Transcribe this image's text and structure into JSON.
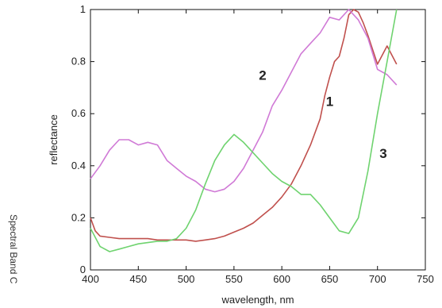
{
  "chart_data": {
    "type": "line",
    "xlabel": "wavelength, nm",
    "ylabel": "reflectance",
    "xlim": [
      400,
      750
    ],
    "ylim": [
      0,
      1
    ],
    "xticks": [
      "400",
      "450",
      "500",
      "550",
      "600",
      "650",
      "700",
      "750"
    ],
    "yticks": [
      "0",
      "0.2",
      "0.4",
      "0.6",
      "0.8",
      "1"
    ],
    "grid": false,
    "legend": "none",
    "series": [
      {
        "name": "1",
        "color": "#c0504d",
        "points": [
          [
            400,
            0.2
          ],
          [
            405,
            0.15
          ],
          [
            410,
            0.13
          ],
          [
            420,
            0.125
          ],
          [
            430,
            0.12
          ],
          [
            440,
            0.12
          ],
          [
            450,
            0.12
          ],
          [
            460,
            0.12
          ],
          [
            470,
            0.115
          ],
          [
            480,
            0.115
          ],
          [
            490,
            0.115
          ],
          [
            500,
            0.115
          ],
          [
            510,
            0.11
          ],
          [
            520,
            0.115
          ],
          [
            530,
            0.12
          ],
          [
            540,
            0.13
          ],
          [
            550,
            0.145
          ],
          [
            560,
            0.16
          ],
          [
            570,
            0.18
          ],
          [
            580,
            0.21
          ],
          [
            590,
            0.24
          ],
          [
            600,
            0.28
          ],
          [
            610,
            0.33
          ],
          [
            620,
            0.4
          ],
          [
            630,
            0.48
          ],
          [
            640,
            0.58
          ],
          [
            645,
            0.67
          ],
          [
            650,
            0.74
          ],
          [
            655,
            0.8
          ],
          [
            660,
            0.82
          ],
          [
            665,
            0.89
          ],
          [
            670,
            0.98
          ],
          [
            675,
            1.0
          ],
          [
            680,
            0.99
          ],
          [
            685,
            0.95
          ],
          [
            690,
            0.9
          ],
          [
            700,
            0.79
          ],
          [
            710,
            0.86
          ],
          [
            720,
            0.79
          ]
        ]
      },
      {
        "name": "2",
        "color": "#d07ad6",
        "points": [
          [
            400,
            0.35
          ],
          [
            410,
            0.4
          ],
          [
            420,
            0.46
          ],
          [
            430,
            0.5
          ],
          [
            440,
            0.5
          ],
          [
            450,
            0.48
          ],
          [
            460,
            0.49
          ],
          [
            470,
            0.48
          ],
          [
            480,
            0.42
          ],
          [
            490,
            0.39
          ],
          [
            500,
            0.36
          ],
          [
            510,
            0.34
          ],
          [
            520,
            0.31
          ],
          [
            530,
            0.3
          ],
          [
            540,
            0.31
          ],
          [
            550,
            0.34
          ],
          [
            560,
            0.39
          ],
          [
            570,
            0.46
          ],
          [
            580,
            0.53
          ],
          [
            590,
            0.63
          ],
          [
            600,
            0.69
          ],
          [
            610,
            0.76
          ],
          [
            620,
            0.83
          ],
          [
            630,
            0.87
          ],
          [
            640,
            0.91
          ],
          [
            650,
            0.97
          ],
          [
            660,
            0.96
          ],
          [
            670,
            1.0
          ],
          [
            680,
            0.96
          ],
          [
            690,
            0.89
          ],
          [
            700,
            0.77
          ],
          [
            710,
            0.75
          ],
          [
            720,
            0.71
          ]
        ]
      },
      {
        "name": "3",
        "color": "#6fd36f",
        "points": [
          [
            400,
            0.16
          ],
          [
            410,
            0.09
          ],
          [
            420,
            0.07
          ],
          [
            430,
            0.08
          ],
          [
            440,
            0.09
          ],
          [
            450,
            0.1
          ],
          [
            460,
            0.105
          ],
          [
            470,
            0.11
          ],
          [
            480,
            0.11
          ],
          [
            490,
            0.12
          ],
          [
            500,
            0.16
          ],
          [
            510,
            0.23
          ],
          [
            520,
            0.33
          ],
          [
            530,
            0.42
          ],
          [
            540,
            0.48
          ],
          [
            550,
            0.52
          ],
          [
            560,
            0.49
          ],
          [
            570,
            0.45
          ],
          [
            580,
            0.41
          ],
          [
            590,
            0.37
          ],
          [
            600,
            0.34
          ],
          [
            610,
            0.32
          ],
          [
            620,
            0.29
          ],
          [
            630,
            0.29
          ],
          [
            640,
            0.25
          ],
          [
            650,
            0.2
          ],
          [
            660,
            0.15
          ],
          [
            670,
            0.14
          ],
          [
            680,
            0.2
          ],
          [
            690,
            0.38
          ],
          [
            700,
            0.6
          ],
          [
            710,
            0.8
          ],
          [
            720,
            1.0
          ]
        ]
      }
    ],
    "annotations": [
      {
        "text": "2",
        "x": 580,
        "y": 0.73
      },
      {
        "text": "1",
        "x": 650,
        "y": 0.63
      },
      {
        "text": "3",
        "x": 706,
        "y": 0.43
      }
    ]
  },
  "side_caption": "Spectral Band C"
}
